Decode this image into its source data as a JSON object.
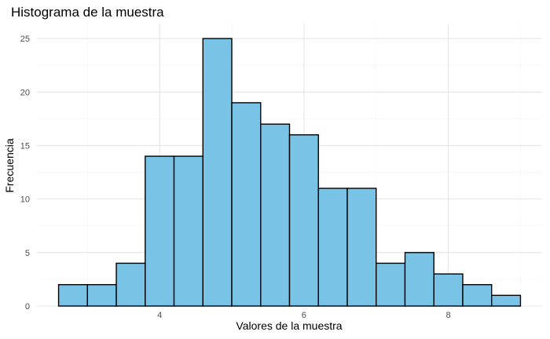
{
  "chart_data": {
    "type": "bar",
    "title": "Histograma de la muestra",
    "xlabel": "Valores de la muestra",
    "ylabel": "Frecuencia",
    "bin_edges": [
      2.6,
      3.0,
      3.4,
      3.8,
      4.2,
      4.6,
      5.0,
      5.4,
      5.8,
      6.2,
      6.6,
      7.0,
      7.4,
      7.8,
      8.2,
      8.6,
      9.0
    ],
    "values": [
      2,
      2,
      4,
      14,
      14,
      25,
      19,
      17,
      16,
      11,
      11,
      4,
      5,
      3,
      2,
      1
    ],
    "xlim": [
      2.3,
      9.3
    ],
    "ylim": [
      0,
      26.4
    ],
    "x_ticks": [
      4,
      6,
      8
    ],
    "x_tick_labels": [
      "4",
      "6",
      "8"
    ],
    "y_ticks": [
      0,
      5,
      10,
      15,
      20,
      25
    ],
    "y_tick_labels": [
      "0",
      "5",
      "10",
      "15",
      "20",
      "25"
    ],
    "grid": true,
    "legend": "none",
    "colors": {
      "bar_fill": "#78c3e6",
      "bar_stroke": "#000000",
      "grid_major": "#e5e5e5",
      "grid_minor": "#f2f2f2",
      "tick_text": "#4d4d4d"
    }
  }
}
